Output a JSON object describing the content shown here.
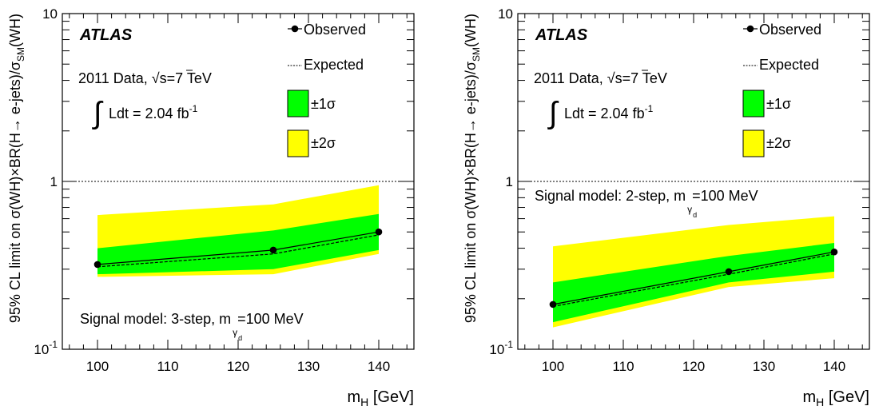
{
  "chart_data": [
    {
      "type": "line",
      "x": [
        100,
        125,
        140
      ],
      "series": [
        {
          "name": "Observed",
          "values": [
            0.32,
            0.39,
            0.5
          ],
          "style": "solid-with-markers"
        },
        {
          "name": "Expected",
          "values": [
            0.31,
            0.37,
            0.48
          ],
          "style": "dashed"
        }
      ],
      "bands": [
        {
          "name": "±1σ",
          "color": "#00ff00",
          "low": [
            0.28,
            0.3,
            0.39
          ],
          "high": [
            0.4,
            0.51,
            0.64
          ]
        },
        {
          "name": "±2σ",
          "color": "#ffff00",
          "low": [
            0.27,
            0.28,
            0.37
          ],
          "high": [
            0.63,
            0.73,
            0.95
          ]
        }
      ],
      "reference_line": 1,
      "xlim": [
        95,
        145
      ],
      "ylim": [
        0.1,
        10
      ],
      "yscale": "log",
      "xticks": [
        "100",
        "110",
        "120",
        "130",
        "140"
      ],
      "yticks": [
        {
          "base": "10",
          "exp": "-1"
        },
        {
          "base": "1",
          "exp": ""
        },
        {
          "base": "10",
          "exp": ""
        }
      ],
      "xlabel": {
        "main": "m",
        "sub": "H",
        "unit": " [GeV]"
      },
      "ylabel": {
        "part1": "95% CL limit on σ(WH)×BR(H→ e-jets)/σ",
        "sub": "SM",
        "part2": "(WH)"
      },
      "atlas_label": "ATLAS",
      "data_label": {
        "prefix": "2011 Data, ",
        "sqrt": "√",
        "s": "s=7 TeV"
      },
      "lumi_label": {
        "integral": "∫",
        "text": "Ldt = 2.04 fb",
        "exp": "-1"
      },
      "signal_model": {
        "text": "Signal model: 3-step, m",
        "sub": "γ",
        "subsub": "d",
        "tail": " =100 MeV"
      },
      "legend": {
        "observed": "Observed",
        "expected": "Expected",
        "band1": "±1σ",
        "band2": "±2σ"
      },
      "legend_position": "top-right",
      "signal_model_position": "bottom"
    },
    {
      "type": "line",
      "x": [
        100,
        125,
        140
      ],
      "series": [
        {
          "name": "Observed",
          "values": [
            0.185,
            0.29,
            0.38
          ],
          "style": "solid-with-markers"
        },
        {
          "name": "Expected",
          "values": [
            0.18,
            0.28,
            0.37
          ],
          "style": "dashed"
        }
      ],
      "bands": [
        {
          "name": "±1σ",
          "color": "#00ff00",
          "low": [
            0.145,
            0.25,
            0.29
          ],
          "high": [
            0.25,
            0.36,
            0.43
          ]
        },
        {
          "name": "±2σ",
          "color": "#ffff00",
          "low": [
            0.135,
            0.235,
            0.265
          ],
          "high": [
            0.41,
            0.55,
            0.62
          ]
        }
      ],
      "reference_line": 1,
      "xlim": [
        95,
        145
      ],
      "ylim": [
        0.1,
        10
      ],
      "yscale": "log",
      "xticks": [
        "100",
        "110",
        "120",
        "130",
        "140"
      ],
      "yticks": [
        {
          "base": "10",
          "exp": "-1"
        },
        {
          "base": "1",
          "exp": ""
        },
        {
          "base": "10",
          "exp": ""
        }
      ],
      "xlabel": {
        "main": "m",
        "sub": "H",
        "unit": " [GeV]"
      },
      "ylabel": {
        "part1": "95% CL limit on σ(WH)×BR(H→ e-jets)/σ",
        "sub": "SM",
        "part2": "(WH)"
      },
      "atlas_label": "ATLAS",
      "data_label": {
        "prefix": "2011 Data, ",
        "sqrt": "√",
        "s": "s=7 TeV"
      },
      "lumi_label": {
        "integral": "∫",
        "text": "Ldt = 2.04 fb",
        "exp": "-1"
      },
      "signal_model": {
        "text": "Signal model: 2-step, m",
        "sub": "γ",
        "subsub": "d",
        "tail": " =100 MeV"
      },
      "legend": {
        "observed": "Observed",
        "expected": "Expected",
        "band1": "±1σ",
        "band2": "±2σ"
      },
      "legend_position": "top-right",
      "signal_model_position": "upper-left"
    }
  ]
}
